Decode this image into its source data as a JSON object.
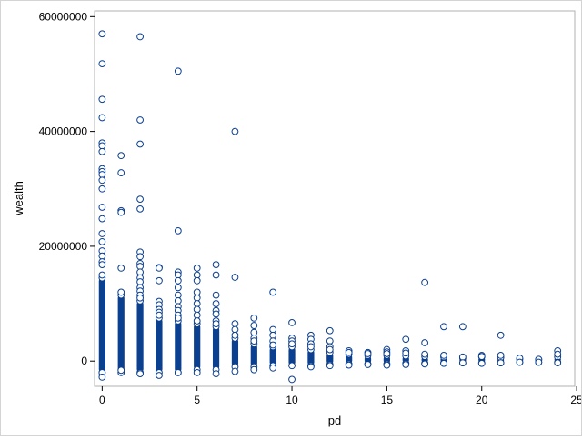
{
  "chart_data": {
    "type": "scatter",
    "title": "",
    "xlabel": "pd",
    "ylabel": "wealth",
    "xlim": [
      -0.4,
      24.9
    ],
    "ylim": [
      -4400000,
      61000000
    ],
    "x_ticks": [
      0,
      5,
      10,
      15,
      20,
      25
    ],
    "x_tick_labels": [
      "0",
      "5",
      "10",
      "15",
      "20",
      "25"
    ],
    "y_ticks": [
      0,
      20000000,
      40000000,
      60000000
    ],
    "y_tick_labels": [
      "0",
      "20000000",
      "40000000",
      "60000000"
    ],
    "grid": false,
    "legend": "none",
    "marker_color": "#0b3f8f",
    "dense_bands": [
      {
        "x": 0,
        "low": -2000000,
        "high": 14500000
      },
      {
        "x": 1,
        "low": -2000000,
        "high": 11500000
      },
      {
        "x": 2,
        "low": -2000000,
        "high": 10500000
      },
      {
        "x": 3,
        "low": -2000000,
        "high": 7500000
      },
      {
        "x": 4,
        "low": -2000000,
        "high": 7000000
      },
      {
        "x": 5,
        "low": -1500000,
        "high": 6500000
      },
      {
        "x": 6,
        "low": -1500000,
        "high": 6000000
      },
      {
        "x": 7,
        "low": -1000000,
        "high": 4000000
      },
      {
        "x": 8,
        "low": -1000000,
        "high": 3000000
      },
      {
        "x": 9,
        "low": -800000,
        "high": 2500000
      },
      {
        "x": 10,
        "low": -800000,
        "high": 2500000
      },
      {
        "x": 11,
        "low": -800000,
        "high": 2000000
      },
      {
        "x": 12,
        "low": -600000,
        "high": 1500000
      },
      {
        "x": 13,
        "low": -500000,
        "high": 1200000
      },
      {
        "x": 14,
        "low": -500000,
        "high": 1000000
      },
      {
        "x": 15,
        "low": -500000,
        "high": 1000000
      },
      {
        "x": 16,
        "low": -400000,
        "high": 900000
      },
      {
        "x": 17,
        "low": -400000,
        "high": 800000
      },
      {
        "x": 18,
        "low": -300000,
        "high": 700000
      },
      {
        "x": 19,
        "low": -300000,
        "high": 500000
      },
      {
        "x": 20,
        "low": -300000,
        "high": 700000
      },
      {
        "x": 21,
        "low": -300000,
        "high": 600000
      },
      {
        "x": 22,
        "low": -200000,
        "high": 300000
      },
      {
        "x": 23,
        "low": -200000,
        "high": 200000
      },
      {
        "x": 24,
        "low": -200000,
        "high": 700000
      }
    ],
    "points": [
      [
        0,
        57000000
      ],
      [
        0,
        51800000
      ],
      [
        0,
        45600000
      ],
      [
        0,
        42400000
      ],
      [
        0,
        38000000
      ],
      [
        0,
        37500000
      ],
      [
        0,
        36500000
      ],
      [
        0,
        33500000
      ],
      [
        0,
        33000000
      ],
      [
        0,
        32500000
      ],
      [
        0,
        31500000
      ],
      [
        0,
        30000000
      ],
      [
        0,
        26800000
      ],
      [
        0,
        24800000
      ],
      [
        0,
        22200000
      ],
      [
        0,
        20800000
      ],
      [
        0,
        19200000
      ],
      [
        0,
        18300000
      ],
      [
        0,
        17300000
      ],
      [
        0,
        16800000
      ],
      [
        0,
        15000000
      ],
      [
        0,
        -2000000
      ],
      [
        0,
        -2800000
      ],
      [
        1,
        35800000
      ],
      [
        1,
        32800000
      ],
      [
        1,
        26200000
      ],
      [
        1,
        25900000
      ],
      [
        1,
        16200000
      ],
      [
        1,
        12000000
      ],
      [
        1,
        -1600000
      ],
      [
        2,
        56500000
      ],
      [
        2,
        42000000
      ],
      [
        2,
        37800000
      ],
      [
        2,
        28200000
      ],
      [
        2,
        26500000
      ],
      [
        2,
        19000000
      ],
      [
        2,
        18200000
      ],
      [
        2,
        17000000
      ],
      [
        2,
        16500000
      ],
      [
        2,
        15500000
      ],
      [
        2,
        14500000
      ],
      [
        2,
        13800000
      ],
      [
        2,
        12800000
      ],
      [
        2,
        12200000
      ],
      [
        2,
        11500000
      ],
      [
        2,
        11000000
      ],
      [
        2,
        -2200000
      ],
      [
        3,
        16300000
      ],
      [
        3,
        16200000
      ],
      [
        3,
        14000000
      ],
      [
        3,
        10400000
      ],
      [
        3,
        9800000
      ],
      [
        3,
        9000000
      ],
      [
        3,
        8500000
      ],
      [
        3,
        8000000
      ],
      [
        3,
        -2500000
      ],
      [
        4,
        50500000
      ],
      [
        4,
        22700000
      ],
      [
        4,
        15500000
      ],
      [
        4,
        15000000
      ],
      [
        4,
        14000000
      ],
      [
        4,
        12800000
      ],
      [
        4,
        11500000
      ],
      [
        4,
        10500000
      ],
      [
        4,
        9500000
      ],
      [
        4,
        8800000
      ],
      [
        4,
        8000000
      ],
      [
        4,
        7500000
      ],
      [
        4,
        -2000000
      ],
      [
        5,
        16200000
      ],
      [
        5,
        15000000
      ],
      [
        5,
        14000000
      ],
      [
        5,
        12000000
      ],
      [
        5,
        11000000
      ],
      [
        5,
        10000000
      ],
      [
        5,
        9000000
      ],
      [
        5,
        8000000
      ],
      [
        5,
        7000000
      ],
      [
        5,
        -2000000
      ],
      [
        6,
        16800000
      ],
      [
        6,
        15000000
      ],
      [
        6,
        11500000
      ],
      [
        6,
        10000000
      ],
      [
        6,
        8800000
      ],
      [
        6,
        8200000
      ],
      [
        6,
        7000000
      ],
      [
        6,
        6500000
      ],
      [
        6,
        -2200000
      ],
      [
        7,
        40000000
      ],
      [
        7,
        14600000
      ],
      [
        7,
        6500000
      ],
      [
        7,
        5500000
      ],
      [
        7,
        4500000
      ],
      [
        7,
        -1800000
      ],
      [
        8,
        7500000
      ],
      [
        8,
        6200000
      ],
      [
        8,
        5000000
      ],
      [
        8,
        4000000
      ],
      [
        8,
        3500000
      ],
      [
        8,
        -1500000
      ],
      [
        9,
        12000000
      ],
      [
        9,
        5500000
      ],
      [
        9,
        4500000
      ],
      [
        9,
        3500000
      ],
      [
        9,
        2800000
      ],
      [
        9,
        -1200000
      ],
      [
        10,
        6700000
      ],
      [
        10,
        4000000
      ],
      [
        10,
        3500000
      ],
      [
        10,
        3000000
      ],
      [
        10,
        -3200000
      ],
      [
        11,
        4500000
      ],
      [
        11,
        3800000
      ],
      [
        11,
        3000000
      ],
      [
        11,
        2500000
      ],
      [
        11,
        -1000000
      ],
      [
        12,
        5300000
      ],
      [
        12,
        3500000
      ],
      [
        12,
        2500000
      ],
      [
        12,
        2000000
      ],
      [
        12,
        -800000
      ],
      [
        13,
        1800000
      ],
      [
        13,
        1500000
      ],
      [
        13,
        -700000
      ],
      [
        14,
        1500000
      ],
      [
        14,
        1300000
      ],
      [
        14,
        -600000
      ],
      [
        15,
        2000000
      ],
      [
        15,
        1600000
      ],
      [
        15,
        1300000
      ],
      [
        15,
        -700000
      ],
      [
        16,
        3800000
      ],
      [
        16,
        1800000
      ],
      [
        16,
        1400000
      ],
      [
        16,
        -600000
      ],
      [
        17,
        13700000
      ],
      [
        17,
        3200000
      ],
      [
        17,
        1200000
      ],
      [
        17,
        -500000
      ],
      [
        18,
        6000000
      ],
      [
        18,
        1000000
      ],
      [
        18,
        -400000
      ],
      [
        19,
        6000000
      ],
      [
        19,
        700000
      ],
      [
        19,
        -300000
      ],
      [
        20,
        1000000
      ],
      [
        20,
        800000
      ],
      [
        20,
        -400000
      ],
      [
        21,
        4500000
      ],
      [
        21,
        1000000
      ],
      [
        21,
        -300000
      ],
      [
        22,
        500000
      ],
      [
        22,
        -200000
      ],
      [
        23,
        300000
      ],
      [
        23,
        -200000
      ],
      [
        24,
        1800000
      ],
      [
        24,
        1200000
      ],
      [
        24,
        -300000
      ]
    ]
  }
}
